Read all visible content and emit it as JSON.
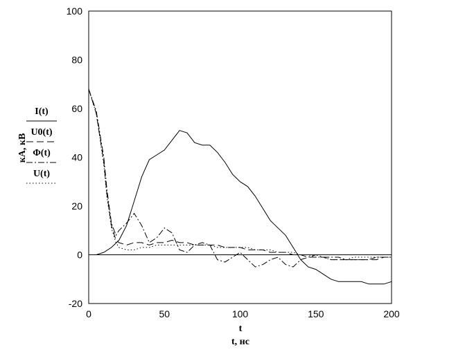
{
  "chart_data": {
    "type": "line",
    "xlabel_var": "t",
    "xlabel": "t, нс",
    "ylabel": "кА, кВ",
    "xlim": [
      0,
      200
    ],
    "ylim": [
      -20,
      100
    ],
    "xticks": [
      0,
      50,
      100,
      150,
      200
    ],
    "yticks": [
      -20,
      0,
      20,
      40,
      60,
      80,
      100
    ],
    "grid": false,
    "zero_line": true,
    "series": [
      {
        "name": "I(t)",
        "style": "solid",
        "x": [
          0,
          5,
          10,
          15,
          20,
          25,
          30,
          35,
          40,
          45,
          50,
          55,
          60,
          65,
          70,
          75,
          80,
          85,
          90,
          95,
          100,
          105,
          110,
          115,
          120,
          125,
          130,
          135,
          140,
          145,
          150,
          155,
          160,
          165,
          170,
          175,
          180,
          185,
          190,
          195,
          200
        ],
        "values": [
          0,
          0,
          1,
          3,
          6,
          12,
          22,
          32,
          39,
          41,
          43,
          47,
          51,
          50,
          46,
          45,
          45,
          42,
          38,
          33,
          30,
          28,
          24,
          19,
          14,
          11,
          8,
          3,
          -2,
          -5,
          -6,
          -8,
          -10,
          -11,
          -11,
          -11,
          -11,
          -12,
          -12,
          -12,
          -11
        ]
      },
      {
        "name": "U0(t)",
        "style": "long-dash",
        "x": [
          0,
          5,
          10,
          12,
          15,
          18,
          20,
          25,
          30,
          35,
          40,
          45,
          50,
          55,
          60,
          65,
          70,
          75,
          80,
          85,
          90,
          95,
          100,
          105,
          110,
          115,
          120,
          125,
          130,
          135,
          140,
          145,
          150,
          155,
          160,
          165,
          170,
          175,
          180,
          185,
          190,
          195,
          200
        ],
        "values": [
          68,
          58,
          38,
          25,
          12,
          6,
          5,
          4,
          5,
          5,
          4,
          5,
          5,
          6,
          5,
          5,
          4,
          4,
          4,
          4,
          3,
          3,
          3,
          2,
          2,
          2,
          1,
          1,
          1,
          0,
          0,
          -1,
          -1,
          -1,
          -2,
          -2,
          -2,
          -2,
          -2,
          -2,
          -2,
          -1,
          -1
        ]
      },
      {
        "name": "Φ(t)",
        "style": "dash-dot",
        "x": [
          0,
          5,
          10,
          12,
          15,
          18,
          20,
          25,
          30,
          35,
          40,
          45,
          50,
          55,
          60,
          65,
          70,
          75,
          80,
          85,
          90,
          95,
          100,
          105,
          110,
          115,
          120,
          125,
          130,
          135,
          140,
          145,
          150,
          155,
          160,
          165,
          170,
          175,
          180,
          185,
          190,
          195,
          200
        ],
        "values": [
          68,
          59,
          40,
          27,
          13,
          8,
          10,
          13,
          17,
          12,
          5,
          7,
          11,
          9,
          2,
          1,
          4,
          5,
          4,
          -2,
          -3,
          -1,
          1,
          -2,
          -5,
          -4,
          -2,
          -1,
          -4,
          -5,
          -2,
          -1,
          0,
          -1,
          -1,
          -1,
          -2,
          -2,
          -2,
          -2,
          -1,
          -1,
          -1
        ]
      },
      {
        "name": "U(t)",
        "style": "dotted",
        "x": [
          0,
          5,
          10,
          12,
          15,
          18,
          20,
          25,
          30,
          35,
          40,
          45,
          50,
          55,
          60,
          65,
          70,
          75,
          80,
          85,
          90,
          95,
          100,
          105,
          110,
          115,
          120,
          125,
          130,
          135,
          140,
          145,
          150,
          155,
          160,
          165,
          170,
          175,
          180,
          185,
          190,
          195,
          200
        ],
        "values": [
          68,
          58,
          37,
          24,
          11,
          5,
          3,
          2,
          2,
          3,
          3,
          4,
          4,
          4,
          4,
          4,
          4,
          4,
          4,
          3,
          3,
          3,
          3,
          3,
          2,
          2,
          2,
          1,
          1,
          1,
          0,
          0,
          -1,
          -1,
          -2,
          -2,
          -2,
          -1,
          -1,
          -1,
          -1,
          -1,
          -1
        ]
      }
    ]
  }
}
